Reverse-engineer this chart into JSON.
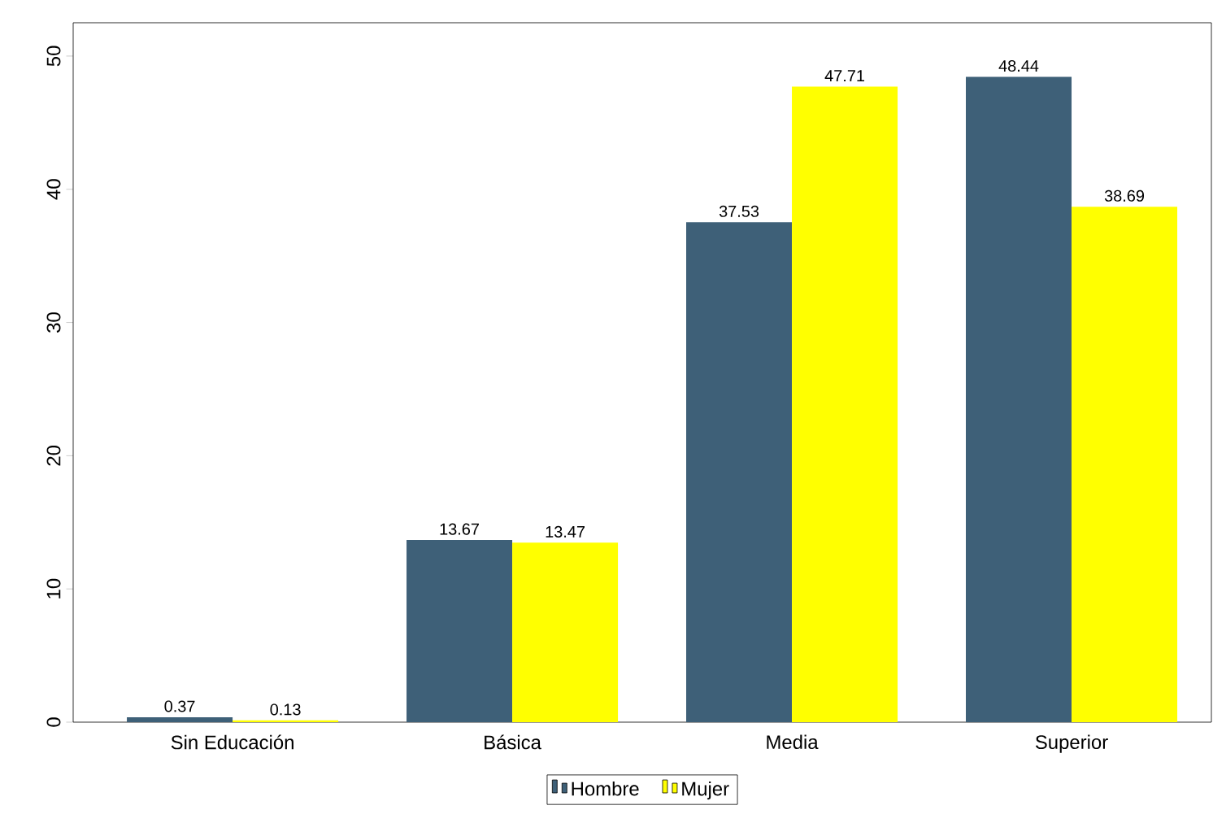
{
  "chart_data": {
    "type": "bar",
    "categories": [
      "Sin Educación",
      "Básica",
      "Media",
      "Superior"
    ],
    "series": [
      {
        "name": "Hombre",
        "color": "#3e6078",
        "values": [
          0.37,
          13.67,
          37.53,
          48.44
        ]
      },
      {
        "name": "Mujer",
        "color": "#ffff00",
        "values": [
          0.13,
          13.47,
          47.71,
          38.69
        ]
      }
    ],
    "ylim": [
      0,
      52.5
    ],
    "yticks": [
      0,
      10,
      20,
      30,
      40,
      50
    ],
    "data_labels": true,
    "legend": "bottom"
  }
}
